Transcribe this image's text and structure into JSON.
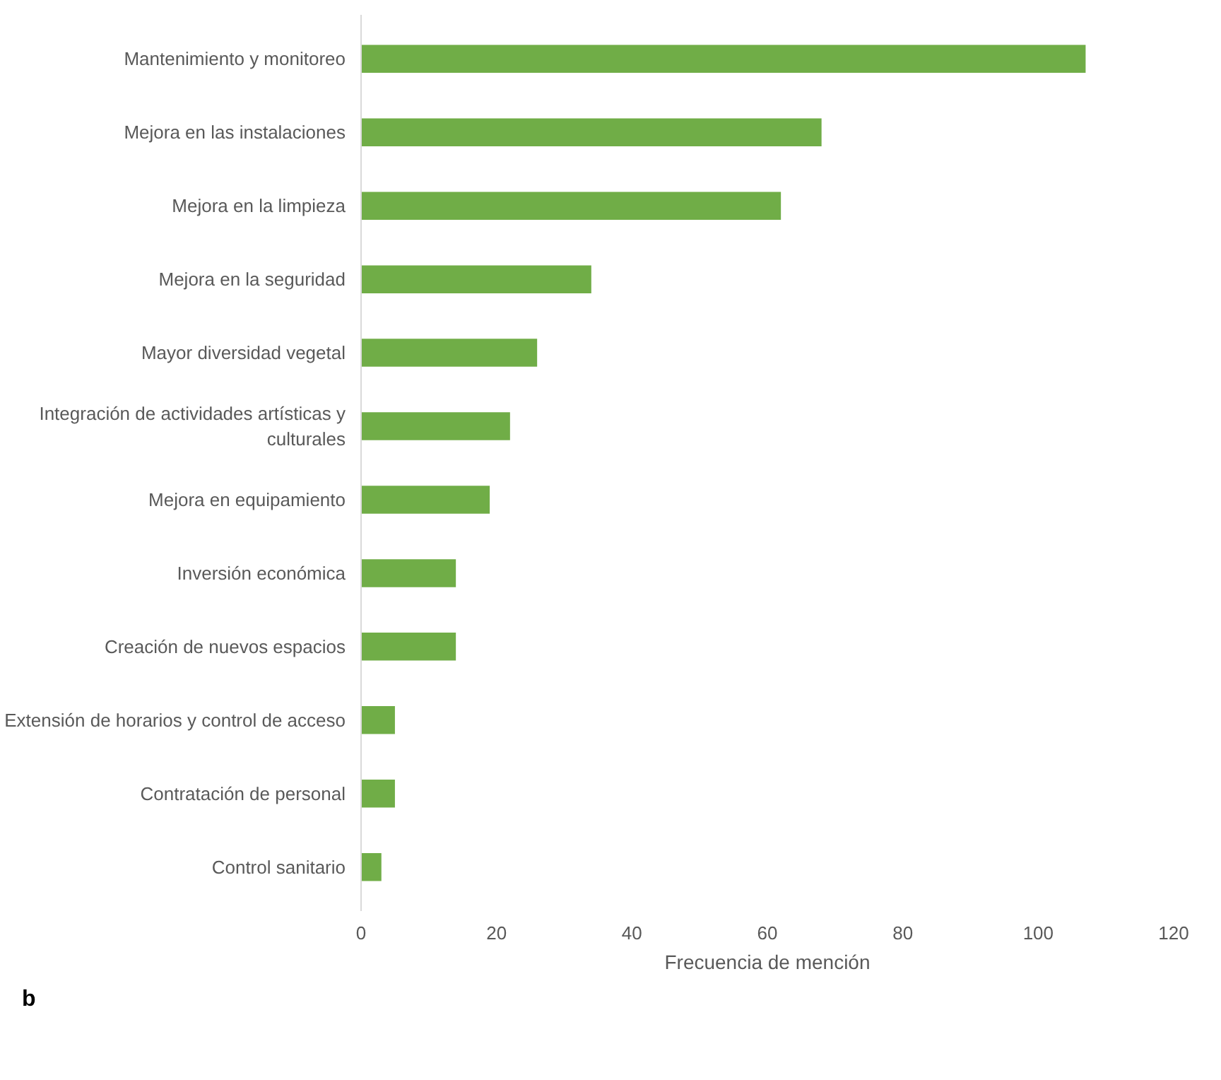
{
  "chart_data": {
    "type": "bar",
    "orientation": "horizontal",
    "categories": [
      "Mantenimiento y monitoreo",
      "Mejora en las instalaciones",
      "Mejora en la limpieza",
      "Mejora en la seguridad",
      "Mayor diversidad vegetal",
      "Integración de actividades artísticas y culturales",
      "Mejora en equipamiento",
      "Inversión económica",
      "Creación de nuevos espacios",
      "Extensión de horarios y control de acceso",
      "Contratación de personal",
      "Control sanitario"
    ],
    "values": [
      107,
      68,
      62,
      34,
      26,
      22,
      19,
      14,
      14,
      5,
      5,
      3
    ],
    "color": "#70ad47",
    "xlim": [
      0,
      120
    ],
    "xticks": [
      0,
      20,
      40,
      60,
      80,
      100,
      120
    ],
    "xlabel": "Frecuencia de mención",
    "annotations": [
      "b"
    ]
  }
}
